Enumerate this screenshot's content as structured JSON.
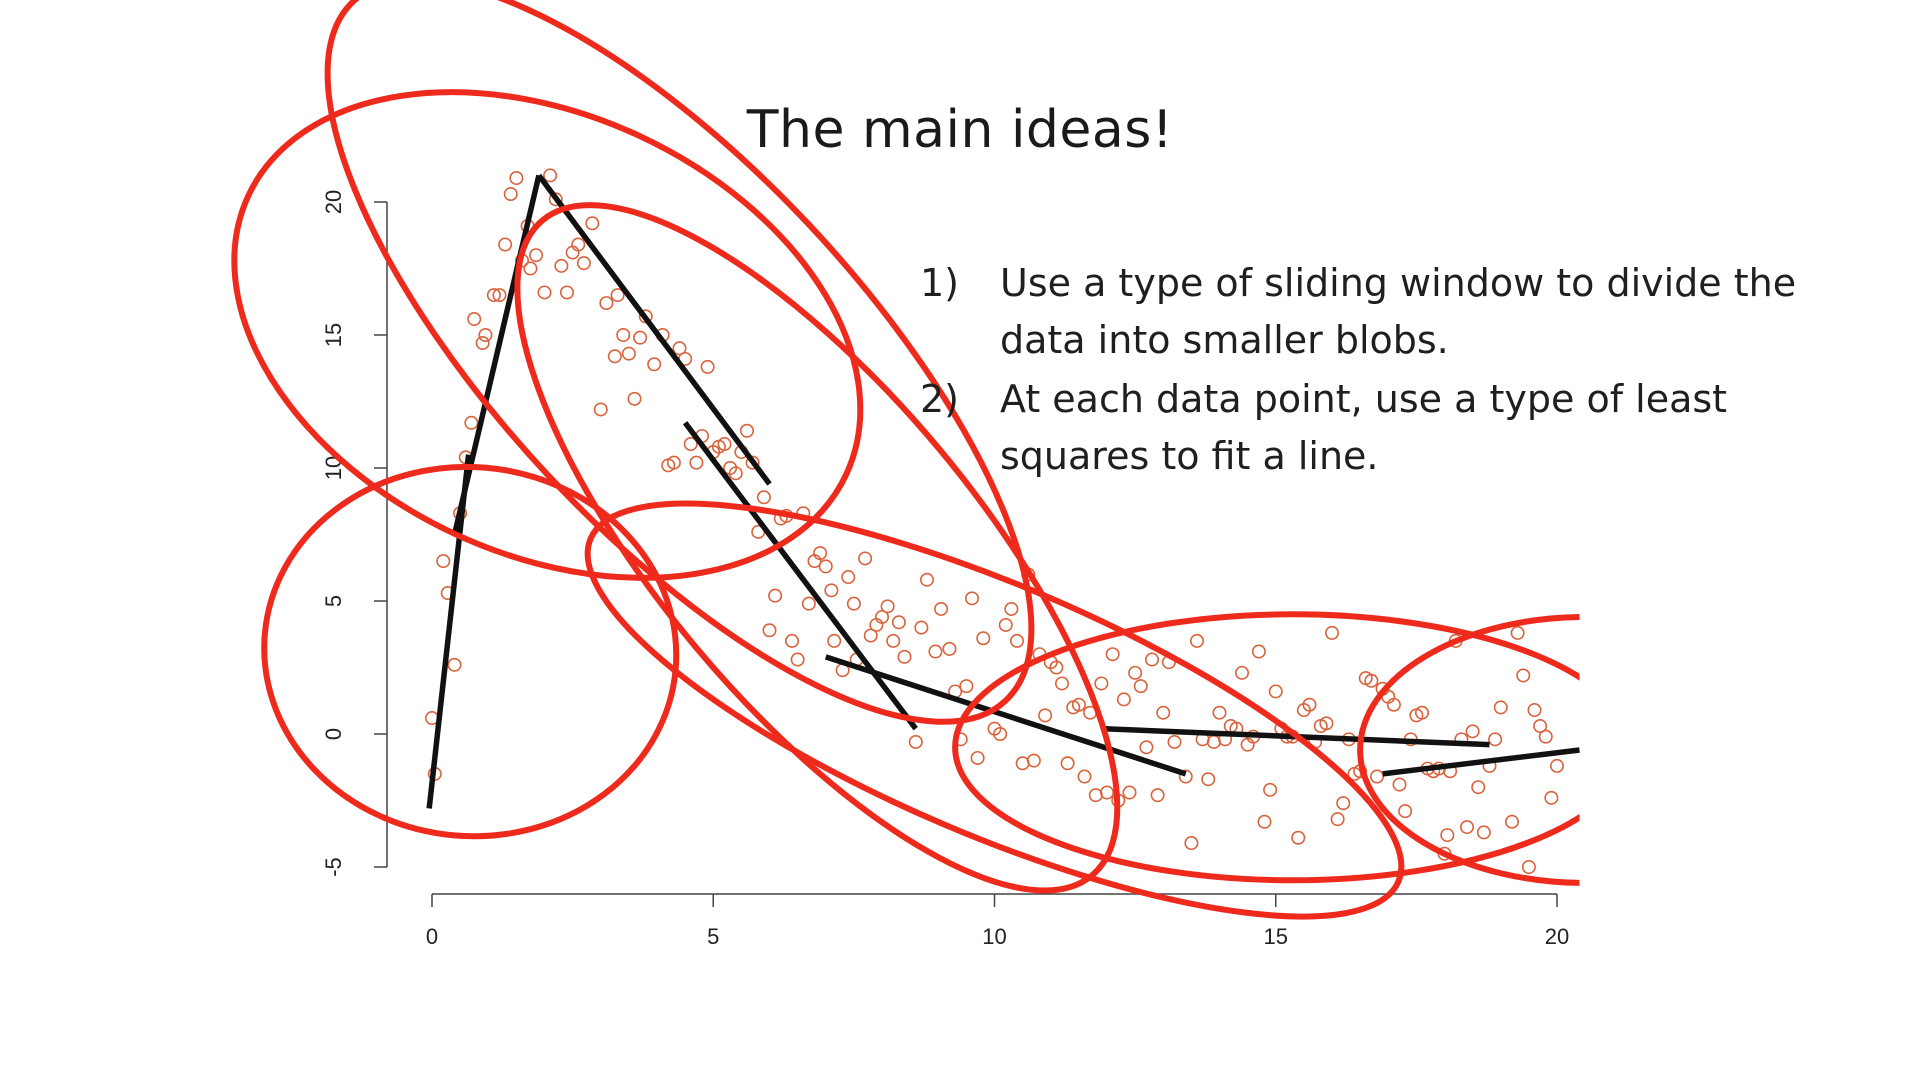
{
  "slide": {
    "title": "The main ideas!",
    "ideas": [
      {
        "num": "1)",
        "text": "Use a type of sliding window to divide the data into smaller blobs."
      },
      {
        "num": "2)",
        "text": "At each data point, use a type of least squares to fit a line."
      }
    ]
  },
  "colors": {
    "points": "#d9623b",
    "ellipses": "#ee2a1c",
    "fit_lines": "#111111",
    "axis": "#444444"
  },
  "chart_data": {
    "type": "scatter",
    "title": "",
    "xlabel": "",
    "ylabel": "",
    "xlim": [
      -0.8,
      20.4
    ],
    "ylim": [
      -6.5,
      22
    ],
    "x_ticks": [
      0,
      5,
      10,
      15,
      20
    ],
    "y_ticks": [
      -5,
      0,
      5,
      10,
      15,
      20
    ],
    "grid": false,
    "points": [
      [
        0.0,
        0.6
      ],
      [
        0.05,
        -1.5
      ],
      [
        0.2,
        6.5
      ],
      [
        0.28,
        5.3
      ],
      [
        0.4,
        2.6
      ],
      [
        0.5,
        8.3
      ],
      [
        0.6,
        10.4
      ],
      [
        0.7,
        11.7
      ],
      [
        0.75,
        15.6
      ],
      [
        0.9,
        14.7
      ],
      [
        0.95,
        15.0
      ],
      [
        1.1,
        16.5
      ],
      [
        1.2,
        16.5
      ],
      [
        1.3,
        18.4
      ],
      [
        1.4,
        20.3
      ],
      [
        1.5,
        20.9
      ],
      [
        1.6,
        17.8
      ],
      [
        1.7,
        19.1
      ],
      [
        1.75,
        17.5
      ],
      [
        1.85,
        18.0
      ],
      [
        2.0,
        16.6
      ],
      [
        2.1,
        21.0
      ],
      [
        2.2,
        20.1
      ],
      [
        2.3,
        17.6
      ],
      [
        2.4,
        16.6
      ],
      [
        2.5,
        18.1
      ],
      [
        2.6,
        18.4
      ],
      [
        2.7,
        17.7
      ],
      [
        2.85,
        19.2
      ],
      [
        3.0,
        12.2
      ],
      [
        3.1,
        16.2
      ],
      [
        3.25,
        14.2
      ],
      [
        3.3,
        16.5
      ],
      [
        3.4,
        15.0
      ],
      [
        3.5,
        14.3
      ],
      [
        3.6,
        12.6
      ],
      [
        3.7,
        14.9
      ],
      [
        3.8,
        15.7
      ],
      [
        3.95,
        13.9
      ],
      [
        4.1,
        15.0
      ],
      [
        4.2,
        10.1
      ],
      [
        4.3,
        10.2
      ],
      [
        4.4,
        14.5
      ],
      [
        4.5,
        14.1
      ],
      [
        4.6,
        10.9
      ],
      [
        4.7,
        10.2
      ],
      [
        4.8,
        11.2
      ],
      [
        4.9,
        13.8
      ],
      [
        5.0,
        10.6
      ],
      [
        5.1,
        10.8
      ],
      [
        5.2,
        10.9
      ],
      [
        5.3,
        10.0
      ],
      [
        5.4,
        9.8
      ],
      [
        5.5,
        10.6
      ],
      [
        5.6,
        11.4
      ],
      [
        5.7,
        10.2
      ],
      [
        5.8,
        7.6
      ],
      [
        5.9,
        8.9
      ],
      [
        6.0,
        3.9
      ],
      [
        6.1,
        5.2
      ],
      [
        6.2,
        8.1
      ],
      [
        6.3,
        8.2
      ],
      [
        6.4,
        3.5
      ],
      [
        6.5,
        2.8
      ],
      [
        6.6,
        8.3
      ],
      [
        6.7,
        4.9
      ],
      [
        6.8,
        6.5
      ],
      [
        6.9,
        6.8
      ],
      [
        7.0,
        6.3
      ],
      [
        7.1,
        5.4
      ],
      [
        7.15,
        3.5
      ],
      [
        7.3,
        2.4
      ],
      [
        7.4,
        5.9
      ],
      [
        7.5,
        4.9
      ],
      [
        7.55,
        2.8
      ],
      [
        7.7,
        6.6
      ],
      [
        7.8,
        3.7
      ],
      [
        7.9,
        4.1
      ],
      [
        8.0,
        4.4
      ],
      [
        8.1,
        4.8
      ],
      [
        8.2,
        3.5
      ],
      [
        8.3,
        4.2
      ],
      [
        8.4,
        2.9
      ],
      [
        8.6,
        -0.3
      ],
      [
        8.7,
        4.0
      ],
      [
        8.8,
        5.8
      ],
      [
        8.95,
        3.1
      ],
      [
        9.05,
        4.7
      ],
      [
        9.2,
        3.2
      ],
      [
        9.3,
        1.6
      ],
      [
        9.4,
        -0.2
      ],
      [
        9.5,
        1.8
      ],
      [
        9.6,
        5.1
      ],
      [
        9.7,
        -0.9
      ],
      [
        9.8,
        3.6
      ],
      [
        10.0,
        0.2
      ],
      [
        10.1,
        0.0
      ],
      [
        10.2,
        4.1
      ],
      [
        10.3,
        4.7
      ],
      [
        10.4,
        3.5
      ],
      [
        10.5,
        -1.1
      ],
      [
        10.6,
        6.0
      ],
      [
        10.7,
        -1.0
      ],
      [
        10.8,
        3.0
      ],
      [
        10.9,
        0.7
      ],
      [
        11.0,
        2.7
      ],
      [
        11.1,
        2.5
      ],
      [
        11.2,
        1.9
      ],
      [
        11.3,
        -1.1
      ],
      [
        11.4,
        1.0
      ],
      [
        11.5,
        1.1
      ],
      [
        11.6,
        -1.6
      ],
      [
        11.7,
        0.8
      ],
      [
        11.8,
        -2.3
      ],
      [
        11.9,
        1.9
      ],
      [
        12.0,
        -2.2
      ],
      [
        12.1,
        3.0
      ],
      [
        12.2,
        -2.5
      ],
      [
        12.3,
        1.3
      ],
      [
        12.4,
        -2.2
      ],
      [
        12.5,
        2.3
      ],
      [
        12.6,
        1.8
      ],
      [
        12.7,
        -0.5
      ],
      [
        12.8,
        2.8
      ],
      [
        12.9,
        -2.3
      ],
      [
        13.0,
        0.8
      ],
      [
        13.1,
        2.7
      ],
      [
        13.2,
        -0.3
      ],
      [
        13.4,
        -1.6
      ],
      [
        13.5,
        -4.1
      ],
      [
        13.6,
        3.5
      ],
      [
        13.7,
        -0.2
      ],
      [
        13.8,
        -1.7
      ],
      [
        13.9,
        -0.3
      ],
      [
        14.0,
        0.8
      ],
      [
        14.1,
        -0.2
      ],
      [
        14.2,
        0.3
      ],
      [
        14.3,
        0.2
      ],
      [
        14.4,
        2.3
      ],
      [
        14.5,
        -0.4
      ],
      [
        14.6,
        -0.1
      ],
      [
        14.7,
        3.1
      ],
      [
        14.8,
        -3.3
      ],
      [
        14.9,
        -2.1
      ],
      [
        15.0,
        1.6
      ],
      [
        15.1,
        0.2
      ],
      [
        15.2,
        -0.1
      ],
      [
        15.3,
        -0.1
      ],
      [
        15.4,
        -3.9
      ],
      [
        15.5,
        0.9
      ],
      [
        15.6,
        1.1
      ],
      [
        15.7,
        -0.3
      ],
      [
        15.8,
        0.3
      ],
      [
        15.9,
        0.4
      ],
      [
        16.0,
        3.8
      ],
      [
        16.1,
        -3.2
      ],
      [
        16.2,
        -2.6
      ],
      [
        16.3,
        -0.2
      ],
      [
        16.4,
        -1.5
      ],
      [
        16.5,
        -1.4
      ],
      [
        16.6,
        2.1
      ],
      [
        16.7,
        2.0
      ],
      [
        16.8,
        -1.6
      ],
      [
        16.9,
        1.7
      ],
      [
        17.0,
        1.4
      ],
      [
        17.1,
        1.1
      ],
      [
        17.2,
        -1.9
      ],
      [
        17.3,
        -2.9
      ],
      [
        17.4,
        -0.2
      ],
      [
        17.5,
        0.7
      ],
      [
        17.6,
        0.8
      ],
      [
        17.7,
        -1.3
      ],
      [
        17.8,
        -1.4
      ],
      [
        17.9,
        -1.3
      ],
      [
        18.0,
        -4.5
      ],
      [
        18.05,
        -3.8
      ],
      [
        18.1,
        -1.4
      ],
      [
        18.2,
        3.5
      ],
      [
        18.3,
        -0.2
      ],
      [
        18.4,
        -3.5
      ],
      [
        18.5,
        0.1
      ],
      [
        18.6,
        -2.0
      ],
      [
        18.7,
        -3.7
      ],
      [
        18.8,
        -1.2
      ],
      [
        18.9,
        -0.2
      ],
      [
        19.0,
        1.0
      ],
      [
        19.2,
        -3.3
      ],
      [
        19.3,
        3.8
      ],
      [
        19.4,
        2.2
      ],
      [
        19.5,
        -5.0
      ],
      [
        19.6,
        0.9
      ],
      [
        19.7,
        0.3
      ],
      [
        19.8,
        -0.1
      ],
      [
        19.9,
        -2.4
      ],
      [
        20.0,
        -1.2
      ]
    ],
    "fit_segments": [
      [
        [
          -0.05,
          -2.8
        ],
        [
          0.65,
          10.5
        ]
      ],
      [
        [
          0.4,
          7.5
        ],
        [
          1.9,
          21.0
        ]
      ],
      [
        [
          1.9,
          21.0
        ],
        [
          6.0,
          9.4
        ]
      ],
      [
        [
          4.5,
          11.7
        ],
        [
          8.6,
          0.2
        ]
      ],
      [
        [
          7.0,
          2.9
        ],
        [
          13.4,
          -1.5
        ]
      ],
      [
        [
          11.9,
          0.2
        ],
        [
          18.8,
          -0.4
        ]
      ],
      [
        [
          16.9,
          -1.5
        ],
        [
          20.4,
          -0.6
        ]
      ]
    ],
    "windows": [
      {
        "cx": 2.05,
        "cy": 15.0,
        "rx": 3.9,
        "ry": 12.4,
        "rot": -65
      },
      {
        "cx": 4.4,
        "cy": 14.4,
        "rx": 8.5,
        "ry": 6.8,
        "rot": 47
      },
      {
        "cx": 6.85,
        "cy": 7.0,
        "rx": 7.6,
        "ry": 5.9,
        "rot": 50
      },
      {
        "cx": 10.0,
        "cy": 0.9,
        "rx": 7.8,
        "ry": 4.7,
        "rot": 23
      },
      {
        "cx": 15.3,
        "cy": -0.5,
        "rx": 6.0,
        "ry": 5.0,
        "rot": 0
      },
      {
        "cx": 20.5,
        "cy": -0.6,
        "rx": 4.0,
        "ry": 5.0,
        "rot": 0
      },
      {
        "cx": 0.68,
        "cy": 3.1,
        "rx": 3.28,
        "ry": 7.75,
        "rot": -85
      }
    ]
  }
}
